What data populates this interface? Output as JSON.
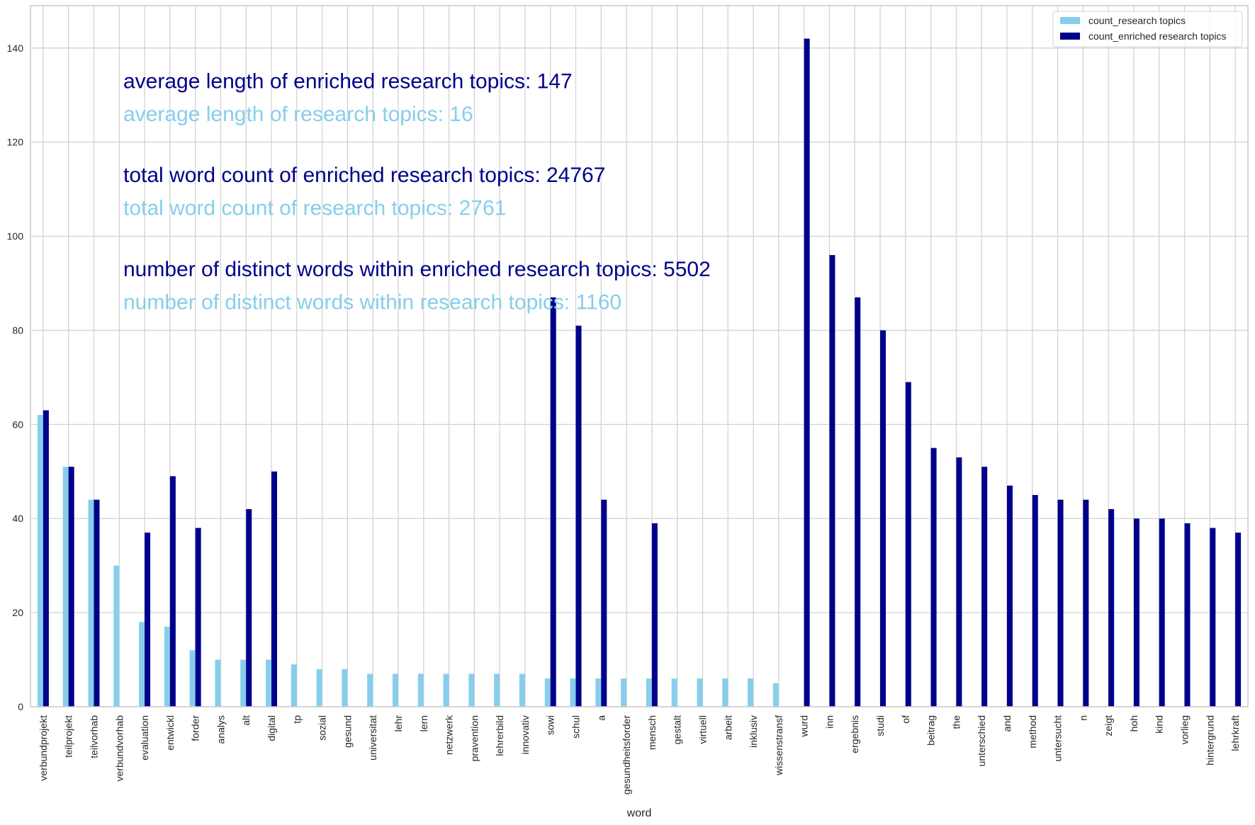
{
  "chart_data": {
    "type": "bar",
    "title": "",
    "xlabel": "word",
    "ylabel": "",
    "ylim": [
      0,
      149
    ],
    "yticks": [
      0,
      20,
      40,
      60,
      80,
      100,
      120,
      140
    ],
    "grid": true,
    "legend_position": "top-right",
    "colors": {
      "research": "#87ceeb",
      "enriched": "#00008b"
    },
    "categories": [
      "verbundprojekt",
      "teilprojekt",
      "teilvorhab",
      "verbundvorhab",
      "evaluation",
      "entwickl",
      "forder",
      "analys",
      "alt",
      "digital",
      "tp",
      "sozial",
      "gesund",
      "universitat",
      "lehr",
      "lern",
      "netzwerk",
      "pravention",
      "lehrerbild",
      "innovativ",
      "sowi",
      "schul",
      "a",
      "gesundheitsforder",
      "mensch",
      "gestalt",
      "virtuell",
      "arbeit",
      "inklusiv",
      "wissenstransf",
      "wurd",
      "inn",
      "ergebnis",
      "studi",
      "of",
      "beitrag",
      "the",
      "unterschied",
      "and",
      "method",
      "untersucht",
      "n",
      "zeigt",
      "hoh",
      "kind",
      "vorlieg",
      "hintergrund",
      "lehrkraft"
    ],
    "series": [
      {
        "name": "count_research topics",
        "color": "#87ceeb",
        "values": [
          62,
          51,
          44,
          30,
          18,
          17,
          12,
          10,
          10,
          10,
          9,
          8,
          8,
          7,
          7,
          7,
          7,
          7,
          7,
          7,
          6,
          6,
          6,
          6,
          6,
          6,
          6,
          6,
          6,
          5,
          0,
          0,
          0,
          0,
          0,
          0,
          0,
          0,
          0,
          0,
          0,
          0,
          0,
          0,
          0,
          0,
          0,
          0
        ]
      },
      {
        "name": "count_enriched research topics",
        "color": "#00008b",
        "values": [
          63,
          51,
          44,
          0,
          37,
          49,
          38,
          0,
          42,
          50,
          0,
          0,
          0,
          0,
          0,
          0,
          0,
          0,
          0,
          0,
          87,
          81,
          44,
          0,
          39,
          0,
          0,
          0,
          0,
          0,
          142,
          96,
          87,
          80,
          69,
          55,
          53,
          51,
          47,
          45,
          44,
          44,
          42,
          40,
          40,
          39,
          38,
          37
        ]
      }
    ],
    "annotations": [
      {
        "text": "average length of enriched research topics: 147",
        "color": "#00008b"
      },
      {
        "text": "average length of research topics: 16",
        "color": "#87ceeb"
      },
      {
        "text": "total word count of enriched research topics: 24767",
        "color": "#00008b"
      },
      {
        "text": "total word count of research topics: 2761",
        "color": "#87ceeb"
      },
      {
        "text": "number of distinct words within enriched research topics: 5502",
        "color": "#00008b"
      },
      {
        "text": "number of distinct words within research topics: 1160",
        "color": "#87ceeb"
      }
    ]
  }
}
